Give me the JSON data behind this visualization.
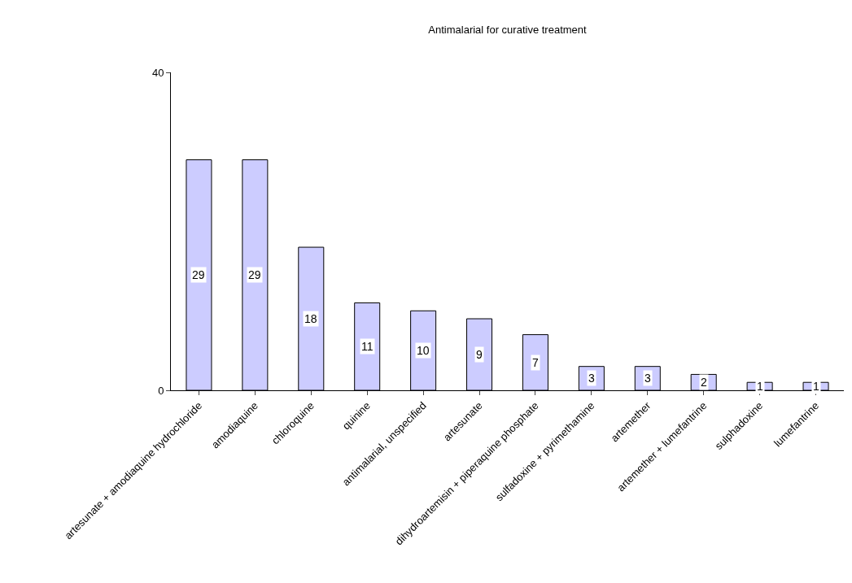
{
  "chart_data": {
    "type": "bar",
    "title": "Antimalarial for curative treatment",
    "categories": [
      "artesunate + amodiaquine hydrochloride",
      "amodiaquine",
      "chloroquine",
      "quinine",
      "antimalarial, unspecified",
      "artesunate",
      "dihydroartemisin + piperaquine phosphate",
      "sulfadoxine + pyrimethamine",
      "artemether",
      "artemether + lumefantrine",
      "sulphadoxine",
      "lumefantrine"
    ],
    "values": [
      29,
      29,
      18,
      11,
      10,
      9,
      7,
      3,
      3,
      2,
      1,
      1
    ],
    "color": "#ccccff",
    "ylim": [
      0,
      40
    ],
    "yticks": [
      0,
      40
    ],
    "legend": false,
    "data_labels": true
  }
}
